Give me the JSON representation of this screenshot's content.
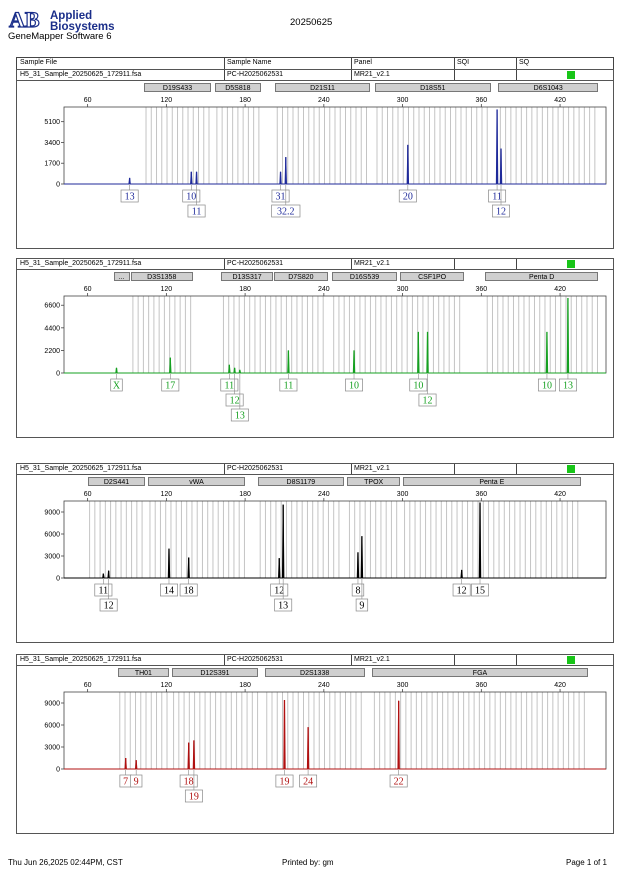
{
  "header": {
    "logo_mark": "AB",
    "brand_line1": "Applied",
    "brand_line2": "Biosystems",
    "software": "GeneMapper Software 6",
    "date": "20250625"
  },
  "columns": {
    "sample_file": "Sample File",
    "sample_name": "Sample Name",
    "panel": "Panel",
    "sqi": "SQI",
    "sq": "SQ"
  },
  "footer": {
    "timestamp": "Thu Jun 26,2025 02:44PM, CST",
    "printed_by": "Printed by: gm",
    "page": "Page 1 of 1"
  },
  "colors": {
    "blue": "#1f2a9a",
    "green": "#15a020",
    "black": "#000000",
    "red": "#b01010",
    "flag": "#18c518"
  },
  "chart_data": [
    {
      "type": "line",
      "sample_file": "H5_31_Sample_20250625_172911.fsa",
      "sample_name": "PC-H2025062531",
      "panel": "MR21_v2.1",
      "dye": "blue",
      "xlim": [
        42,
        455
      ],
      "x_ticks": [
        60,
        120,
        180,
        240,
        300,
        360,
        420
      ],
      "ylim": [
        0,
        6300
      ],
      "y_ticks": [
        0,
        1700,
        3400,
        5100
      ],
      "loci": [
        {
          "name": "D19S433",
          "start": 103,
          "end": 154
        },
        {
          "name": "D5S818",
          "start": 157,
          "end": 192
        },
        {
          "name": "D21S11",
          "start": 203,
          "end": 275
        },
        {
          "name": "D18S51",
          "start": 279,
          "end": 367
        },
        {
          "name": "D6S1043",
          "start": 373,
          "end": 449
        }
      ],
      "peaks": [
        {
          "x": 92,
          "h": 500
        },
        {
          "x": 139,
          "h": 1000
        },
        {
          "x": 143,
          "h": 1000
        },
        {
          "x": 207,
          "h": 1000
        },
        {
          "x": 211,
          "h": 2200
        },
        {
          "x": 304,
          "h": 3200
        },
        {
          "x": 372,
          "h": 6100
        },
        {
          "x": 375,
          "h": 2900
        }
      ],
      "alleles": [
        {
          "x": 92,
          "row": 0,
          "label": "13"
        },
        {
          "x": 139,
          "row": 0,
          "label": "10"
        },
        {
          "x": 143,
          "row": 1,
          "label": "11"
        },
        {
          "x": 207,
          "row": 0,
          "label": "31"
        },
        {
          "x": 211,
          "row": 1,
          "label": "32.2"
        },
        {
          "x": 304,
          "row": 0,
          "label": "20"
        },
        {
          "x": 372,
          "row": 0,
          "label": "11"
        },
        {
          "x": 375,
          "row": 1,
          "label": "12"
        }
      ]
    },
    {
      "type": "line",
      "sample_file": "H5_31_Sample_20250625_172911.fsa",
      "sample_name": "PC-H2025062531",
      "panel": "MR21_v2.1",
      "dye": "green",
      "xlim": [
        42,
        455
      ],
      "x_ticks": [
        60,
        120,
        180,
        240,
        300,
        360,
        420
      ],
      "ylim": [
        0,
        7500
      ],
      "y_ticks": [
        0,
        2200,
        4400,
        6600
      ],
      "loci": [
        {
          "name": "...",
          "start": 80,
          "end": 92
        },
        {
          "name": "D3S1358",
          "start": 93,
          "end": 140
        },
        {
          "name": "D13S317",
          "start": 162,
          "end": 201
        },
        {
          "name": "D7S820",
          "start": 202,
          "end": 243
        },
        {
          "name": "D16S539",
          "start": 246,
          "end": 296
        },
        {
          "name": "CSF1PO",
          "start": 298,
          "end": 347
        },
        {
          "name": "Penta D",
          "start": 363,
          "end": 449
        }
      ],
      "peaks": [
        {
          "x": 82,
          "h": 500
        },
        {
          "x": 123,
          "h": 1500
        },
        {
          "x": 168,
          "h": 800
        },
        {
          "x": 172,
          "h": 500
        },
        {
          "x": 176,
          "h": 300
        },
        {
          "x": 213,
          "h": 2200
        },
        {
          "x": 263,
          "h": 2200
        },
        {
          "x": 312,
          "h": 4000
        },
        {
          "x": 319,
          "h": 4000
        },
        {
          "x": 410,
          "h": 4000
        },
        {
          "x": 426,
          "h": 7300
        }
      ],
      "alleles": [
        {
          "x": 82,
          "row": 0,
          "label": "X"
        },
        {
          "x": 123,
          "row": 0,
          "label": "17"
        },
        {
          "x": 168,
          "row": 0,
          "label": "11"
        },
        {
          "x": 172,
          "row": 1,
          "label": "12"
        },
        {
          "x": 176,
          "row": 2,
          "label": "13"
        },
        {
          "x": 213,
          "row": 0,
          "label": "11"
        },
        {
          "x": 263,
          "row": 0,
          "label": "10"
        },
        {
          "x": 312,
          "row": 0,
          "label": "10"
        },
        {
          "x": 319,
          "row": 1,
          "label": "12"
        },
        {
          "x": 410,
          "row": 0,
          "label": "10"
        },
        {
          "x": 426,
          "row": 0,
          "label": "13"
        }
      ]
    },
    {
      "type": "line",
      "sample_file": "H5_31_Sample_20250625_172911.fsa",
      "sample_name": "PC-H2025062531",
      "panel": "MR21_v2.1",
      "dye": "black",
      "xlim": [
        42,
        455
      ],
      "x_ticks": [
        60,
        120,
        180,
        240,
        300,
        360,
        420
      ],
      "ylim": [
        0,
        10500
      ],
      "y_ticks": [
        0,
        3000,
        6000,
        9000
      ],
      "loci": [
        {
          "name": "D2S441",
          "start": 60,
          "end": 104
        },
        {
          "name": "vWA",
          "start": 106,
          "end": 180
        },
        {
          "name": "D8S1179",
          "start": 190,
          "end": 255
        },
        {
          "name": "TPOX",
          "start": 258,
          "end": 298
        },
        {
          "name": "Penta E",
          "start": 300,
          "end": 436
        }
      ],
      "peaks": [
        {
          "x": 72,
          "h": 600
        },
        {
          "x": 76,
          "h": 1000
        },
        {
          "x": 122,
          "h": 4000
        },
        {
          "x": 137,
          "h": 2800
        },
        {
          "x": 206,
          "h": 2700
        },
        {
          "x": 209,
          "h": 10000
        },
        {
          "x": 266,
          "h": 3500
        },
        {
          "x": 269,
          "h": 5700
        },
        {
          "x": 345,
          "h": 1100
        },
        {
          "x": 359,
          "h": 10300
        }
      ],
      "alleles": [
        {
          "x": 72,
          "row": 0,
          "label": "11"
        },
        {
          "x": 76,
          "row": 1,
          "label": "12"
        },
        {
          "x": 122,
          "row": 0,
          "label": "14"
        },
        {
          "x": 137,
          "row": 0,
          "label": "18"
        },
        {
          "x": 206,
          "row": 0,
          "label": "12"
        },
        {
          "x": 209,
          "row": 1,
          "label": "13"
        },
        {
          "x": 266,
          "row": 0,
          "label": "8"
        },
        {
          "x": 269,
          "row": 1,
          "label": "9"
        },
        {
          "x": 345,
          "row": 0,
          "label": "12"
        },
        {
          "x": 359,
          "row": 0,
          "label": "15"
        }
      ]
    },
    {
      "type": "line",
      "sample_file": "H5_31_Sample_20250625_172911.fsa",
      "sample_name": "PC-H2025062531",
      "panel": "MR21_v2.1",
      "dye": "red",
      "xlim": [
        42,
        455
      ],
      "x_ticks": [
        60,
        120,
        180,
        240,
        300,
        360,
        420
      ],
      "ylim": [
        0,
        10500
      ],
      "y_ticks": [
        0,
        3000,
        6000,
        9000
      ],
      "loci": [
        {
          "name": "TH01",
          "start": 83,
          "end": 122
        },
        {
          "name": "D12S391",
          "start": 124,
          "end": 190
        },
        {
          "name": "D2S1338",
          "start": 195,
          "end": 271
        },
        {
          "name": "FGA",
          "start": 277,
          "end": 441
        }
      ],
      "peaks": [
        {
          "x": 89,
          "h": 1500
        },
        {
          "x": 97,
          "h": 1200
        },
        {
          "x": 137,
          "h": 3600
        },
        {
          "x": 141,
          "h": 3900
        },
        {
          "x": 210,
          "h": 9400
        },
        {
          "x": 228,
          "h": 5700
        },
        {
          "x": 297,
          "h": 9300
        }
      ],
      "alleles": [
        {
          "x": 89,
          "row": 0,
          "label": "7"
        },
        {
          "x": 97,
          "row": 0,
          "label": "9"
        },
        {
          "x": 137,
          "row": 0,
          "label": "18"
        },
        {
          "x": 141,
          "row": 1,
          "label": "19"
        },
        {
          "x": 210,
          "row": 0,
          "label": "19"
        },
        {
          "x": 228,
          "row": 0,
          "label": "24"
        },
        {
          "x": 297,
          "row": 0,
          "label": "22"
        }
      ]
    }
  ]
}
